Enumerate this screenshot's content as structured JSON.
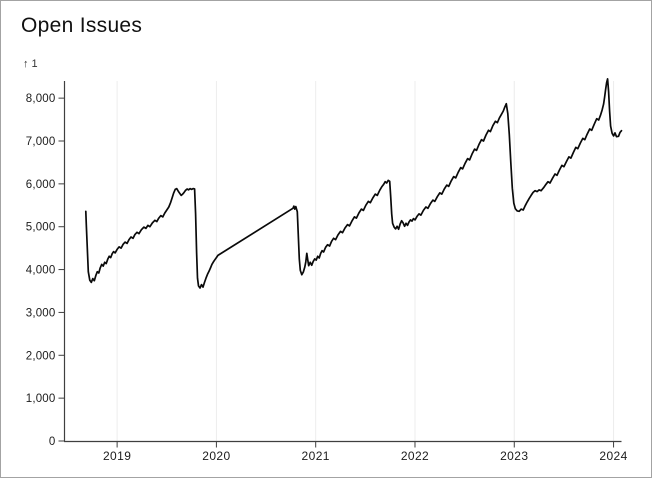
{
  "title": "Open Issues",
  "window": {
    "background": "#ffffff",
    "border_color": "#a3a3a3"
  },
  "chart_data": {
    "type": "line",
    "title": "Open Issues",
    "ylabel": "↑ 1",
    "xlabel": "",
    "legend": "none",
    "grid": "vertical-only",
    "x_ticks": [
      2019,
      2020,
      2021,
      2022,
      2023,
      2024
    ],
    "y_ticks": [
      0,
      1000,
      2000,
      3000,
      4000,
      5000,
      6000,
      7000,
      8000
    ],
    "y_tick_labels": [
      "0",
      "1,000",
      "2,000",
      "3,000",
      "4,000",
      "5,000",
      "6,000",
      "7,000",
      "8,000"
    ],
    "xlim": [
      2018.47,
      2024.08
    ],
    "ylim": [
      0,
      8400
    ],
    "line_color": "#0a0a0a",
    "grid_color": "#ececec",
    "axis_color": "#3f3f3f",
    "tick_label_color": "#1c1c1c",
    "series": [
      {
        "name": "Open Issues",
        "points": [
          [
            2018.685,
            5360
          ],
          [
            2018.69,
            5050
          ],
          [
            2018.7,
            4500
          ],
          [
            2018.71,
            3950
          ],
          [
            2018.725,
            3750
          ],
          [
            2018.74,
            3700
          ],
          [
            2018.755,
            3790
          ],
          [
            2018.77,
            3740
          ],
          [
            2018.785,
            3860
          ],
          [
            2018.8,
            3950
          ],
          [
            2018.815,
            3920
          ],
          [
            2018.83,
            4040
          ],
          [
            2018.845,
            4120
          ],
          [
            2018.86,
            4080
          ],
          [
            2018.875,
            4170
          ],
          [
            2018.89,
            4140
          ],
          [
            2018.905,
            4240
          ],
          [
            2018.92,
            4310
          ],
          [
            2018.935,
            4280
          ],
          [
            2018.95,
            4370
          ],
          [
            2018.965,
            4420
          ],
          [
            2018.98,
            4390
          ],
          [
            2019.0,
            4470
          ],
          [
            2019.02,
            4530
          ],
          [
            2019.04,
            4500
          ],
          [
            2019.06,
            4590
          ],
          [
            2019.08,
            4640
          ],
          [
            2019.1,
            4610
          ],
          [
            2019.12,
            4700
          ],
          [
            2019.14,
            4760
          ],
          [
            2019.16,
            4730
          ],
          [
            2019.18,
            4820
          ],
          [
            2019.2,
            4870
          ],
          [
            2019.22,
            4840
          ],
          [
            2019.245,
            4930
          ],
          [
            2019.27,
            4990
          ],
          [
            2019.29,
            4960
          ],
          [
            2019.31,
            5030
          ],
          [
            2019.33,
            5000
          ],
          [
            2019.355,
            5090
          ],
          [
            2019.38,
            5150
          ],
          [
            2019.4,
            5120
          ],
          [
            2019.42,
            5200
          ],
          [
            2019.44,
            5260
          ],
          [
            2019.46,
            5230
          ],
          [
            2019.48,
            5320
          ],
          [
            2019.5,
            5390
          ],
          [
            2019.52,
            5460
          ],
          [
            2019.54,
            5570
          ],
          [
            2019.555,
            5680
          ],
          [
            2019.57,
            5790
          ],
          [
            2019.585,
            5870
          ],
          [
            2019.6,
            5890
          ],
          [
            2019.615,
            5830
          ],
          [
            2019.63,
            5780
          ],
          [
            2019.645,
            5730
          ],
          [
            2019.66,
            5760
          ],
          [
            2019.675,
            5800
          ],
          [
            2019.69,
            5850
          ],
          [
            2019.705,
            5880
          ],
          [
            2019.72,
            5860
          ],
          [
            2019.735,
            5890
          ],
          [
            2019.75,
            5870
          ],
          [
            2019.765,
            5890
          ],
          [
            2019.78,
            5880
          ],
          [
            2019.79,
            5300
          ],
          [
            2019.8,
            4400
          ],
          [
            2019.81,
            3800
          ],
          [
            2019.82,
            3620
          ],
          [
            2019.835,
            3570
          ],
          [
            2019.85,
            3650
          ],
          [
            2019.865,
            3590
          ],
          [
            2019.88,
            3700
          ],
          [
            2019.895,
            3800
          ],
          [
            2019.91,
            3890
          ],
          [
            2019.925,
            3960
          ],
          [
            2019.94,
            4040
          ],
          [
            2019.955,
            4120
          ],
          [
            2019.97,
            4180
          ],
          [
            2019.985,
            4230
          ],
          [
            2020.0,
            4280
          ],
          [
            2020.015,
            4330
          ],
          [
            2020.77,
            5430
          ],
          [
            2020.78,
            5480
          ],
          [
            2020.79,
            5410
          ],
          [
            2020.8,
            5470
          ],
          [
            2020.815,
            5350
          ],
          [
            2020.825,
            4800
          ],
          [
            2020.835,
            4250
          ],
          [
            2020.845,
            3980
          ],
          [
            2020.86,
            3880
          ],
          [
            2020.875,
            3940
          ],
          [
            2020.89,
            4060
          ],
          [
            2020.9,
            4180
          ],
          [
            2020.91,
            4380
          ],
          [
            2020.92,
            4220
          ],
          [
            2020.93,
            4090
          ],
          [
            2020.945,
            4170
          ],
          [
            2020.96,
            4100
          ],
          [
            2020.975,
            4190
          ],
          [
            2020.99,
            4250
          ],
          [
            2021.005,
            4220
          ],
          [
            2021.02,
            4310
          ],
          [
            2021.035,
            4270
          ],
          [
            2021.05,
            4380
          ],
          [
            2021.065,
            4440
          ],
          [
            2021.08,
            4410
          ],
          [
            2021.1,
            4520
          ],
          [
            2021.12,
            4580
          ],
          [
            2021.14,
            4550
          ],
          [
            2021.16,
            4660
          ],
          [
            2021.18,
            4730
          ],
          [
            2021.2,
            4700
          ],
          [
            2021.225,
            4810
          ],
          [
            2021.25,
            4890
          ],
          [
            2021.27,
            4860
          ],
          [
            2021.295,
            4970
          ],
          [
            2021.32,
            5050
          ],
          [
            2021.34,
            5020
          ],
          [
            2021.365,
            5130
          ],
          [
            2021.39,
            5230
          ],
          [
            2021.41,
            5200
          ],
          [
            2021.435,
            5320
          ],
          [
            2021.46,
            5410
          ],
          [
            2021.48,
            5380
          ],
          [
            2021.505,
            5500
          ],
          [
            2021.53,
            5590
          ],
          [
            2021.55,
            5560
          ],
          [
            2021.575,
            5670
          ],
          [
            2021.6,
            5760
          ],
          [
            2021.62,
            5730
          ],
          [
            2021.645,
            5850
          ],
          [
            2021.665,
            5930
          ],
          [
            2021.685,
            5990
          ],
          [
            2021.7,
            6050
          ],
          [
            2021.715,
            6020
          ],
          [
            2021.73,
            6080
          ],
          [
            2021.745,
            6060
          ],
          [
            2021.755,
            5700
          ],
          [
            2021.765,
            5300
          ],
          [
            2021.775,
            5080
          ],
          [
            2021.79,
            4990
          ],
          [
            2021.805,
            4950
          ],
          [
            2021.82,
            5010
          ],
          [
            2021.835,
            4940
          ],
          [
            2021.85,
            5060
          ],
          [
            2021.865,
            5140
          ],
          [
            2021.88,
            5090
          ],
          [
            2021.895,
            5010
          ],
          [
            2021.91,
            5080
          ],
          [
            2021.925,
            5030
          ],
          [
            2021.94,
            5110
          ],
          [
            2021.955,
            5160
          ],
          [
            2021.97,
            5130
          ],
          [
            2021.985,
            5190
          ],
          [
            2022.0,
            5160
          ],
          [
            2022.02,
            5240
          ],
          [
            2022.04,
            5300
          ],
          [
            2022.06,
            5270
          ],
          [
            2022.085,
            5380
          ],
          [
            2022.11,
            5460
          ],
          [
            2022.13,
            5430
          ],
          [
            2022.155,
            5540
          ],
          [
            2022.18,
            5620
          ],
          [
            2022.2,
            5590
          ],
          [
            2022.225,
            5700
          ],
          [
            2022.25,
            5790
          ],
          [
            2022.27,
            5760
          ],
          [
            2022.295,
            5880
          ],
          [
            2022.32,
            5970
          ],
          [
            2022.34,
            5940
          ],
          [
            2022.365,
            6070
          ],
          [
            2022.39,
            6170
          ],
          [
            2022.41,
            6140
          ],
          [
            2022.435,
            6270
          ],
          [
            2022.46,
            6380
          ],
          [
            2022.48,
            6350
          ],
          [
            2022.505,
            6480
          ],
          [
            2022.53,
            6590
          ],
          [
            2022.55,
            6560
          ],
          [
            2022.575,
            6700
          ],
          [
            2022.6,
            6810
          ],
          [
            2022.62,
            6780
          ],
          [
            2022.645,
            6920
          ],
          [
            2022.67,
            7030
          ],
          [
            2022.69,
            7000
          ],
          [
            2022.715,
            7140
          ],
          [
            2022.74,
            7250
          ],
          [
            2022.76,
            7220
          ],
          [
            2022.785,
            7360
          ],
          [
            2022.81,
            7460
          ],
          [
            2022.83,
            7430
          ],
          [
            2022.85,
            7540
          ],
          [
            2022.87,
            7620
          ],
          [
            2022.89,
            7700
          ],
          [
            2022.905,
            7790
          ],
          [
            2022.92,
            7870
          ],
          [
            2022.935,
            7640
          ],
          [
            2022.95,
            7150
          ],
          [
            2022.965,
            6500
          ],
          [
            2022.98,
            5900
          ],
          [
            2022.995,
            5550
          ],
          [
            2023.01,
            5420
          ],
          [
            2023.03,
            5370
          ],
          [
            2023.05,
            5360
          ],
          [
            2023.07,
            5410
          ],
          [
            2023.09,
            5390
          ],
          [
            2023.11,
            5490
          ],
          [
            2023.13,
            5580
          ],
          [
            2023.15,
            5660
          ],
          [
            2023.17,
            5730
          ],
          [
            2023.19,
            5800
          ],
          [
            2023.21,
            5840
          ],
          [
            2023.23,
            5820
          ],
          [
            2023.25,
            5860
          ],
          [
            2023.27,
            5840
          ],
          [
            2023.295,
            5910
          ],
          [
            2023.32,
            5990
          ],
          [
            2023.34,
            6050
          ],
          [
            2023.36,
            6020
          ],
          [
            2023.385,
            6130
          ],
          [
            2023.41,
            6230
          ],
          [
            2023.43,
            6200
          ],
          [
            2023.455,
            6320
          ],
          [
            2023.48,
            6430
          ],
          [
            2023.5,
            6400
          ],
          [
            2023.525,
            6520
          ],
          [
            2023.55,
            6630
          ],
          [
            2023.57,
            6600
          ],
          [
            2023.595,
            6730
          ],
          [
            2023.62,
            6850
          ],
          [
            2023.64,
            6820
          ],
          [
            2023.665,
            6950
          ],
          [
            2023.69,
            7060
          ],
          [
            2023.71,
            7030
          ],
          [
            2023.735,
            7160
          ],
          [
            2023.76,
            7280
          ],
          [
            2023.78,
            7250
          ],
          [
            2023.805,
            7390
          ],
          [
            2023.83,
            7520
          ],
          [
            2023.85,
            7490
          ],
          [
            2023.87,
            7610
          ],
          [
            2023.885,
            7720
          ],
          [
            2023.9,
            7860
          ],
          [
            2023.91,
            8020
          ],
          [
            2023.92,
            8200
          ],
          [
            2023.93,
            8360
          ],
          [
            2023.94,
            8450
          ],
          [
            2023.95,
            8150
          ],
          [
            2023.96,
            7700
          ],
          [
            2023.97,
            7350
          ],
          [
            2023.985,
            7180
          ],
          [
            2024.0,
            7120
          ],
          [
            2024.015,
            7190
          ],
          [
            2024.03,
            7100
          ],
          [
            2024.05,
            7110
          ],
          [
            2024.065,
            7200
          ],
          [
            2024.08,
            7240
          ]
        ]
      }
    ]
  }
}
